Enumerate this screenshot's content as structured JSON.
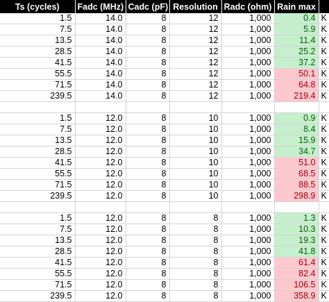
{
  "headers": [
    "Ts (cycles)",
    "Fadc (MHz)",
    "Cadc (pF)",
    "Resolution",
    "Radc (ohm)",
    "Rain max",
    ""
  ],
  "status_colors": {
    "good_fill": "#c6efce",
    "good_text": "#006100",
    "bad_fill": "#ffc7ce",
    "bad_text": "#9c0006"
  },
  "rows": [
    {
      "ts": "1.5",
      "fadc": "14.0",
      "cadc": "8",
      "res": "12",
      "radc": "1,000",
      "rain": "0.4",
      "unit": "K",
      "status": "good"
    },
    {
      "ts": "7.5",
      "fadc": "14.0",
      "cadc": "8",
      "res": "12",
      "radc": "1,000",
      "rain": "5.9",
      "unit": "K",
      "status": "good"
    },
    {
      "ts": "13.5",
      "fadc": "14.0",
      "cadc": "8",
      "res": "12",
      "radc": "1,000",
      "rain": "11.4",
      "unit": "K",
      "status": "good"
    },
    {
      "ts": "28.5",
      "fadc": "14.0",
      "cadc": "8",
      "res": "12",
      "radc": "1,000",
      "rain": "25.2",
      "unit": "K",
      "status": "good"
    },
    {
      "ts": "41.5",
      "fadc": "14.0",
      "cadc": "8",
      "res": "12",
      "radc": "1,000",
      "rain": "37.2",
      "unit": "K",
      "status": "good"
    },
    {
      "ts": "55.5",
      "fadc": "14.0",
      "cadc": "8",
      "res": "12",
      "radc": "1,000",
      "rain": "50.1",
      "unit": "K",
      "status": "bad"
    },
    {
      "ts": "71.5",
      "fadc": "14.0",
      "cadc": "8",
      "res": "12",
      "radc": "1,000",
      "rain": "64.8",
      "unit": "K",
      "status": "bad"
    },
    {
      "ts": "239.5",
      "fadc": "14.0",
      "cadc": "8",
      "res": "12",
      "radc": "1,000",
      "rain": "219.4",
      "unit": "K",
      "status": "bad"
    },
    {
      "blank": true
    },
    {
      "ts": "1.5",
      "fadc": "12.0",
      "cadc": "8",
      "res": "10",
      "radc": "1,000",
      "rain": "0.9",
      "unit": "K",
      "status": "good"
    },
    {
      "ts": "7.5",
      "fadc": "12.0",
      "cadc": "8",
      "res": "10",
      "radc": "1,000",
      "rain": "8.4",
      "unit": "K",
      "status": "good"
    },
    {
      "ts": "13.5",
      "fadc": "12.0",
      "cadc": "8",
      "res": "10",
      "radc": "1,000",
      "rain": "15.9",
      "unit": "K",
      "status": "good"
    },
    {
      "ts": "28.5",
      "fadc": "12.0",
      "cadc": "8",
      "res": "10",
      "radc": "1,000",
      "rain": "34.7",
      "unit": "K",
      "status": "good"
    },
    {
      "ts": "41.5",
      "fadc": "12.0",
      "cadc": "8",
      "res": "10",
      "radc": "1,000",
      "rain": "51.0",
      "unit": "K",
      "status": "bad"
    },
    {
      "ts": "55.5",
      "fadc": "12.0",
      "cadc": "8",
      "res": "10",
      "radc": "1,000",
      "rain": "68.5",
      "unit": "K",
      "status": "bad"
    },
    {
      "ts": "71.5",
      "fadc": "12.0",
      "cadc": "8",
      "res": "10",
      "radc": "1,000",
      "rain": "88.5",
      "unit": "K",
      "status": "bad"
    },
    {
      "ts": "239.5",
      "fadc": "12.0",
      "cadc": "8",
      "res": "10",
      "radc": "1,000",
      "rain": "298.9",
      "unit": "K",
      "status": "bad"
    },
    {
      "blank": true
    },
    {
      "ts": "1.5",
      "fadc": "12.0",
      "cadc": "8",
      "res": "8",
      "radc": "1,000",
      "rain": "1.3",
      "unit": "K",
      "status": "good"
    },
    {
      "ts": "7.5",
      "fadc": "12.0",
      "cadc": "8",
      "res": "8",
      "radc": "1,000",
      "rain": "10.3",
      "unit": "K",
      "status": "good"
    },
    {
      "ts": "13.5",
      "fadc": "12.0",
      "cadc": "8",
      "res": "8",
      "radc": "1,000",
      "rain": "19.3",
      "unit": "K",
      "status": "good"
    },
    {
      "ts": "28.5",
      "fadc": "12.0",
      "cadc": "8",
      "res": "8",
      "radc": "1,000",
      "rain": "41.8",
      "unit": "K",
      "status": "good"
    },
    {
      "ts": "41.5",
      "fadc": "12.0",
      "cadc": "8",
      "res": "8",
      "radc": "1,000",
      "rain": "61.4",
      "unit": "K",
      "status": "bad"
    },
    {
      "ts": "55.5",
      "fadc": "12.0",
      "cadc": "8",
      "res": "8",
      "radc": "1,000",
      "rain": "82.4",
      "unit": "K",
      "status": "bad"
    },
    {
      "ts": "71.5",
      "fadc": "12.0",
      "cadc": "8",
      "res": "8",
      "radc": "1,000",
      "rain": "106.5",
      "unit": "K",
      "status": "bad"
    },
    {
      "ts": "239.5",
      "fadc": "12.0",
      "cadc": "8",
      "res": "8",
      "radc": "1,000",
      "rain": "358.9",
      "unit": "K",
      "status": "bad"
    }
  ]
}
